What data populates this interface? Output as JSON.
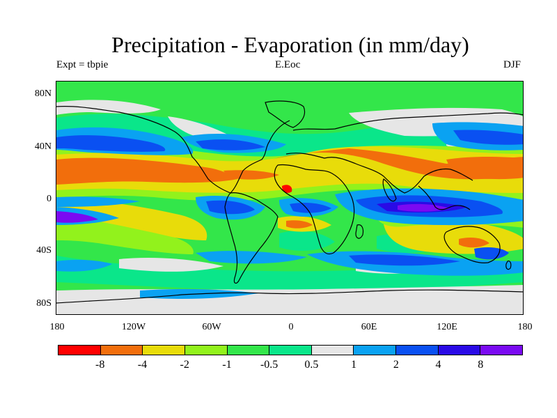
{
  "title": "Precipitation - Evaporation (in mm/day)",
  "subtitle_left": "Expt = tbpie",
  "subtitle_center": "E.Eoc",
  "subtitle_right": "DJF",
  "lat_labels": [
    "80N",
    "40N",
    "0",
    "40S",
    "80S"
  ],
  "lon_labels": [
    "180",
    "120W",
    "60W",
    "0",
    "60E",
    "120E",
    "180"
  ],
  "colorbar": {
    "colors": [
      "#ff0000",
      "#f26e0c",
      "#e8dc0a",
      "#92f21c",
      "#33e64a",
      "#0ae68a",
      "#e6e6e6",
      "#0aa2f2",
      "#0a50f2",
      "#2a0ae6",
      "#7a0af2"
    ],
    "labels": [
      "-8",
      "-4",
      "-2",
      "-1",
      "-0.5",
      "0.5",
      "1",
      "2",
      "4",
      "8"
    ]
  },
  "map_colors": {
    "background": "#33e64a",
    "teal": "#0ae68a",
    "grey": "#e6e6e6",
    "lightblue": "#0aa2f2",
    "blue": "#0a50f2",
    "darkblue": "#2a0ae6",
    "purple": "#7a0af2",
    "lime": "#92f21c",
    "yellow": "#e8dc0a",
    "orange": "#f26e0c",
    "red": "#ff0000",
    "coast": "#000000"
  }
}
